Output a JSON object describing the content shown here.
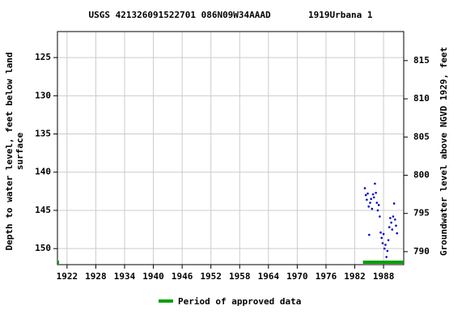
{
  "chart_data": {
    "type": "scatter",
    "title": "USGS 421326091522701 086N09W34AAAD       1919Urbana 1",
    "ylabel": [
      "Depth to water level, feet below land",
      "surface"
    ],
    "y2label": "Groundwater level above NGVD 1929, feet",
    "xlim": [
      1920,
      1992.2
    ],
    "xticks": [
      1922,
      1928,
      1934,
      1940,
      1946,
      1952,
      1958,
      1964,
      1970,
      1976,
      1982,
      1988
    ],
    "ylim": [
      121.6,
      152.1
    ],
    "yticks": [
      125,
      130,
      135,
      140,
      145,
      150
    ],
    "y_inverted": true,
    "y2lim": [
      818.8,
      788.3
    ],
    "y2ticks": [
      815,
      810,
      805,
      800,
      795,
      790
    ],
    "grid": true,
    "x": [
      1984.1,
      1984.3,
      1984.5,
      1984.7,
      1984.9,
      1985.0,
      1985.2,
      1985.4,
      1985.6,
      1985.8,
      1986.0,
      1986.2,
      1986.4,
      1986.6,
      1986.8,
      1987.0,
      1987.2,
      1987.4,
      1987.6,
      1987.8,
      1988.0,
      1988.2,
      1988.4,
      1988.6,
      1988.8,
      1989.0,
      1989.2,
      1989.4,
      1989.6,
      1989.8,
      1990.0,
      1990.2,
      1990.4,
      1990.6,
      1990.8
    ],
    "values": [
      142.1,
      143.0,
      143.6,
      142.8,
      144.5,
      148.2,
      144.0,
      143.5,
      144.8,
      142.9,
      143.3,
      141.5,
      142.7,
      144.0,
      145.0,
      144.3,
      145.8,
      147.9,
      148.6,
      149.3,
      148.1,
      150.0,
      149.5,
      151.1,
      150.3,
      148.9,
      147.2,
      146.0,
      146.6,
      147.5,
      145.8,
      144.1,
      146.2,
      147.0,
      148.0
    ],
    "color": "#0000cc",
    "approved": {
      "name": "Period of approved data",
      "color": "#00a000",
      "periods": [
        [
          1920,
          1920.3
        ],
        [
          1983.7,
          1992.2
        ]
      ]
    }
  }
}
